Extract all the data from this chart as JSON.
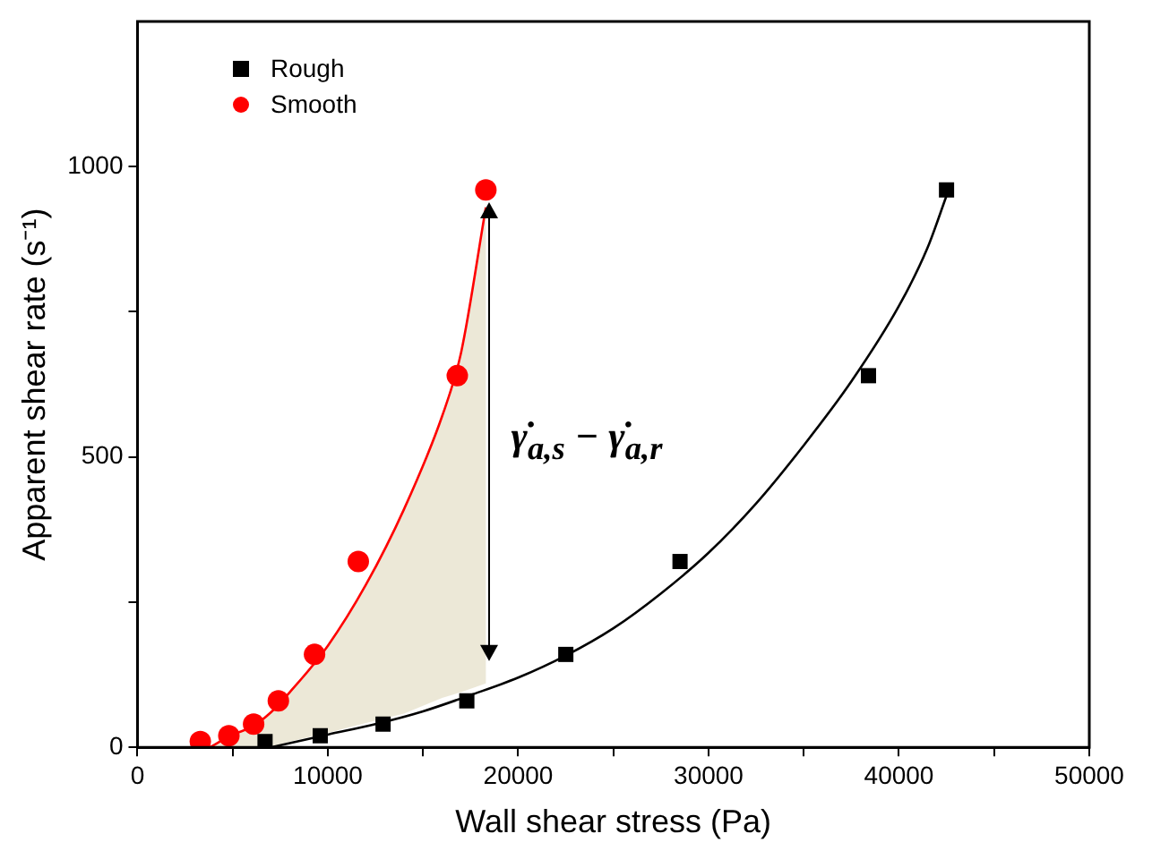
{
  "chart_data": {
    "type": "scatter",
    "xlabel": "Wall shear stress (Pa)",
    "ylabel": "Apparent shear rate (s⁻¹)",
    "xlim": [
      0,
      50000
    ],
    "xticks": [
      0,
      {
        "value": 5000,
        "label": null
      },
      10000,
      {
        "value": 15000,
        "label": null
      },
      20000,
      {
        "value": 25000,
        "label": null
      },
      30000,
      {
        "value": 35000,
        "label": null
      },
      40000,
      {
        "value": 45000,
        "label": null
      },
      50000
    ],
    "ylim": [
      0,
      1250
    ],
    "yticks": [
      0,
      {
        "value": 250,
        "label": null
      },
      500,
      {
        "value": 750,
        "label": null
      },
      1000
    ],
    "grid": false,
    "legend": "top left",
    "series": [
      {
        "name": "Rough",
        "marker": "square",
        "color": "#000000",
        "x": [
          6700,
          9600,
          12900,
          17300,
          22500,
          28500,
          38400,
          42500
        ],
        "values": [
          10,
          20,
          40,
          80,
          160,
          320,
          640,
          960
        ]
      },
      {
        "name": "Smooth",
        "marker": "circle",
        "color": "#ff0000",
        "x": [
          3300,
          4800,
          6100,
          7400,
          9300,
          11600,
          16800,
          18300
        ],
        "values": [
          10,
          20,
          40,
          80,
          160,
          320,
          640,
          960
        ]
      },
      {
        "type": "line",
        "marker": "none",
        "color": "#000000",
        "x": [
          7000,
          10000,
          12500,
          15000,
          17500,
          20000,
          22500,
          25000,
          27500,
          30000,
          32500,
          35000,
          37500,
          40000,
          41500,
          42500
        ],
        "values": [
          0,
          22,
          40,
          62,
          90,
          120,
          158,
          205,
          265,
          335,
          420,
          520,
          630,
          760,
          860,
          950
        ]
      },
      {
        "type": "line",
        "marker": "none",
        "color": "#ff0000",
        "x": [
          3800,
          5000,
          6000,
          7000,
          8000,
          10000,
          12000,
          14000,
          16000,
          17000,
          18300
        ],
        "values": [
          0,
          22,
          35,
          60,
          95,
          175,
          280,
          410,
          570,
          680,
          930
        ],
        "lower": [
          0,
          0,
          0,
          0,
          10,
          25,
          42,
          58,
          85,
          95,
          110
        ],
        "upper": [
          0,
          22,
          35,
          60,
          95,
          175,
          280,
          410,
          570,
          680,
          930
        ]
      }
    ],
    "annotations": [
      {
        "text": "γ̇$_{a,s}$ − γ̇$_{a,r}$",
        "x": 18500,
        "y": 500
      }
    ]
  }
}
